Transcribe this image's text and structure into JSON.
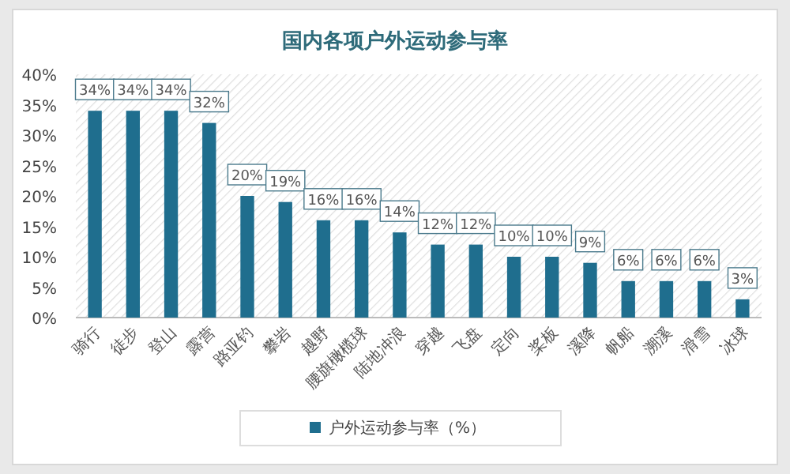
{
  "chart_data": {
    "type": "bar",
    "title": "国内各项户外运动参与率",
    "categories": [
      "骑行",
      "徒步",
      "登山",
      "露营",
      "路亚钓",
      "攀岩",
      "越野",
      "腰旗橄榄球",
      "陆地冲浪",
      "穿越",
      "飞盘",
      "定向",
      "桨板",
      "溪降",
      "帆船",
      "溯溪",
      "滑雪",
      "冰球"
    ],
    "series": [
      {
        "name": "户外运动参与率（%）",
        "color": "#1f6e8e",
        "values": [
          34,
          34,
          34,
          32,
          20,
          19,
          16,
          16,
          14,
          12,
          12,
          10,
          10,
          9,
          6,
          6,
          6,
          3
        ],
        "value_labels": [
          "34%",
          "34%",
          "34%",
          "32%",
          "20%",
          "19%",
          "16%",
          "16%",
          "14%",
          "12%",
          "12%",
          "10%",
          "10%",
          "9%",
          "6%",
          "6%",
          "6%",
          "3%"
        ]
      }
    ],
    "ylim": [
      0,
      40
    ],
    "yticks": [
      {
        "value": 0,
        "label": "0%"
      },
      {
        "value": 5,
        "label": "5%"
      },
      {
        "value": 10,
        "label": "10%"
      },
      {
        "value": 15,
        "label": "15%"
      },
      {
        "value": 20,
        "label": "20%"
      },
      {
        "value": 25,
        "label": "25%"
      },
      {
        "value": 30,
        "label": "30%"
      },
      {
        "value": 35,
        "label": "35%"
      },
      {
        "value": 40,
        "label": "40%"
      }
    ],
    "grid": false,
    "legend": "bottom"
  }
}
